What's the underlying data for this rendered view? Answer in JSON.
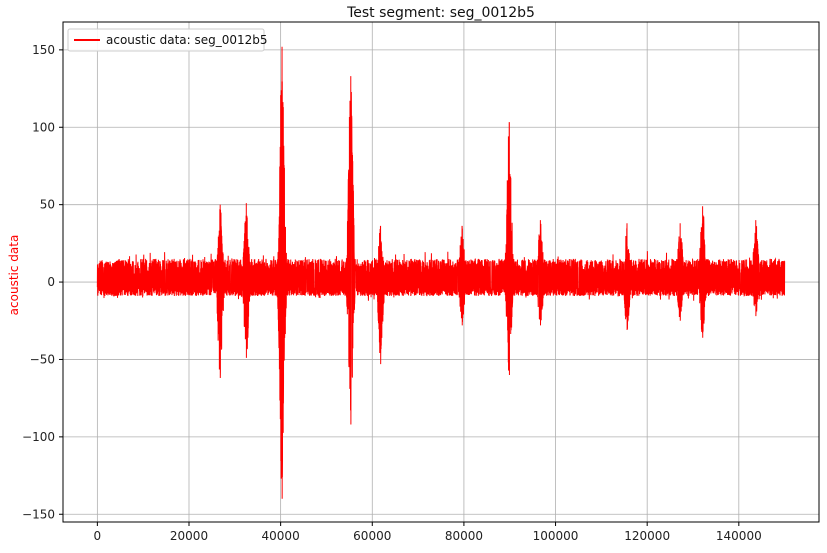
{
  "chart_data": {
    "type": "line",
    "title": "Test segment: seg_0012b5",
    "xlabel": "",
    "ylabel": "acoustic data",
    "xlim": [
      -7500,
      157500
    ],
    "ylim": [
      -155,
      168
    ],
    "xticks": [
      0,
      20000,
      40000,
      60000,
      80000,
      100000,
      120000,
      140000
    ],
    "yticks": [
      -150,
      -100,
      -50,
      0,
      50,
      100,
      150
    ],
    "xtick_labels": [
      "0",
      "20000",
      "40000",
      "60000",
      "80000",
      "100000",
      "120000",
      "140000"
    ],
    "ytick_labels": [
      "−150",
      "−100",
      "−50",
      "0",
      "50",
      "100",
      "150"
    ],
    "grid": true,
    "legend_position": "top-left",
    "series": [
      {
        "name": "acoustic data: seg_0012b5",
        "color": "#ff0000",
        "x_range": [
          0,
          150000
        ],
        "baseline_amplitude": [
          -9,
          15
        ],
        "events": [
          {
            "x": 26800,
            "min": -62,
            "max": 50
          },
          {
            "x": 32500,
            "min": -49,
            "max": 51
          },
          {
            "x": 40300,
            "min": -140,
            "max": 152
          },
          {
            "x": 55300,
            "min": -92,
            "max": 133
          },
          {
            "x": 61800,
            "min": -53,
            "max": 36
          },
          {
            "x": 79600,
            "min": -28,
            "max": 36
          },
          {
            "x": 89900,
            "min": -60,
            "max": 103
          },
          {
            "x": 96700,
            "min": -28,
            "max": 40
          },
          {
            "x": 115600,
            "min": -31,
            "max": 38
          },
          {
            "x": 127200,
            "min": -25,
            "max": 38
          },
          {
            "x": 132100,
            "min": -36,
            "max": 49
          },
          {
            "x": 143700,
            "min": -22,
            "max": 40
          }
        ]
      }
    ]
  }
}
